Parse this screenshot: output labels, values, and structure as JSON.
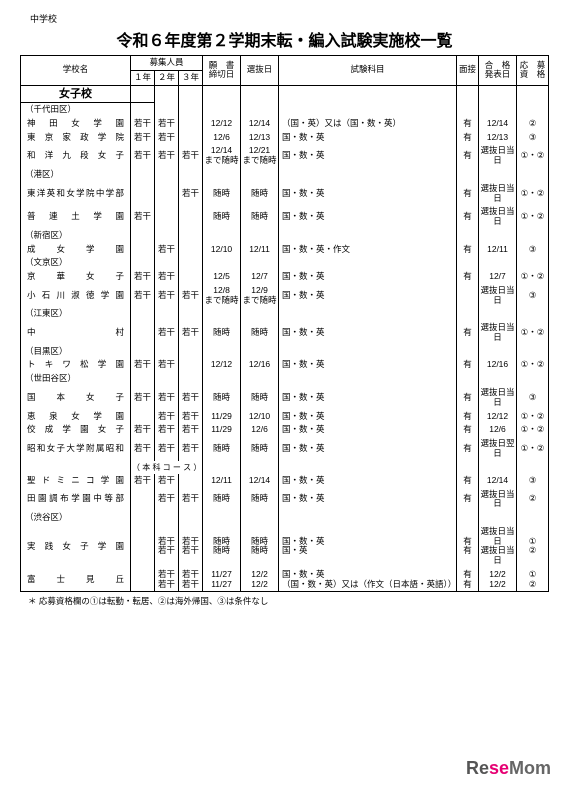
{
  "pretitle": "中学校",
  "title": "令和６年度第２学期末転・編入試験実施校一覧",
  "headers": {
    "school": "学校名",
    "recruit": "募集人員",
    "y1": "１年",
    "y2": "２年",
    "y3": "３年",
    "deadline": "願　書\n締切日",
    "select": "選抜日",
    "subjects": "試験科目",
    "interview": "面接",
    "result": "合　格\n発表日",
    "elig": "応　募\n資　格"
  },
  "section": "女子校",
  "rows": [
    {
      "type": "district",
      "text": "（千代田区）"
    },
    {
      "type": "school",
      "name": "神　田　女　学　園",
      "y1": "若干",
      "y2": "若干",
      "y3": "",
      "dl": "12/12",
      "sel": "12/14",
      "subj": "（国・英）又は（国・数・英）",
      "itv": "有",
      "res": "12/14",
      "elig": "②"
    },
    {
      "type": "school",
      "name": "東　京　家　政　学　院",
      "y1": "若干",
      "y2": "若干",
      "y3": "",
      "dl": "12/6",
      "sel": "12/13",
      "subj": "国・数・英",
      "itv": "有",
      "res": "12/13",
      "elig": "③"
    },
    {
      "type": "school",
      "name": "和　洋　九　段　女　子",
      "y1": "若干",
      "y2": "若干",
      "y3": "若干",
      "dl": "12/14\nまで随時",
      "sel": "12/21\nまで随時",
      "subj": "国・数・英",
      "itv": "有",
      "res": "選抜日当日",
      "elig": "①・②"
    },
    {
      "type": "district",
      "text": "（港区）"
    },
    {
      "type": "school",
      "name": "東洋英和女学院中学部",
      "y1": "",
      "y2": "",
      "y3": "若干",
      "dl": "随時",
      "sel": "随時",
      "subj": "国・数・英",
      "itv": "有",
      "res": "選抜日当日",
      "elig": "①・②"
    },
    {
      "type": "school",
      "name": "普　連　土　学　園",
      "y1": "若干",
      "y2": "",
      "y3": "",
      "dl": "随時",
      "sel": "随時",
      "subj": "国・数・英",
      "itv": "有",
      "res": "選抜日当日",
      "elig": "①・②"
    },
    {
      "type": "district",
      "text": "（新宿区）"
    },
    {
      "type": "school",
      "name": "成　　女　　学　　園",
      "y1": "",
      "y2": "若干",
      "y3": "",
      "dl": "12/10",
      "sel": "12/11",
      "subj": "国・数・英・作文",
      "itv": "有",
      "res": "12/11",
      "elig": "③"
    },
    {
      "type": "district",
      "text": "（文京区）"
    },
    {
      "type": "school",
      "name": "京　　華　　女　　子",
      "y1": "若干",
      "y2": "若干",
      "y3": "",
      "dl": "12/5",
      "sel": "12/7",
      "subj": "国・数・英",
      "itv": "有",
      "res": "12/7",
      "elig": "①・②"
    },
    {
      "type": "school",
      "name": "小 石 川 淑 徳 学 園",
      "y1": "若干",
      "y2": "若干",
      "y3": "若干",
      "dl": "12/8\nまで随時",
      "sel": "12/9\nまで随時",
      "subj": "国・数・英",
      "itv": "",
      "res": "選抜日当日",
      "elig": "③"
    },
    {
      "type": "district",
      "text": "（江東区）"
    },
    {
      "type": "school",
      "name": "中　　　　　　　　村",
      "y1": "",
      "y2": "若干",
      "y3": "若干",
      "dl": "随時",
      "sel": "随時",
      "subj": "国・数・英",
      "itv": "有",
      "res": "選抜日当日",
      "elig": "①・②"
    },
    {
      "type": "district",
      "text": "（目黒区）"
    },
    {
      "type": "school",
      "name": "ト キ ワ 松 学 園",
      "y1": "若干",
      "y2": "若干",
      "y3": "",
      "dl": "12/12",
      "sel": "12/16",
      "subj": "国・数・英",
      "itv": "有",
      "res": "12/16",
      "elig": "①・②"
    },
    {
      "type": "district",
      "text": "（世田谷区）"
    },
    {
      "type": "school",
      "name": "国　　本　　女　　子",
      "y1": "若干",
      "y2": "若干",
      "y3": "若干",
      "dl": "随時",
      "sel": "随時",
      "subj": "国・数・英",
      "itv": "有",
      "res": "選抜日当日",
      "elig": "③"
    },
    {
      "type": "school",
      "name": "恵　泉　女　学　園",
      "y1": "",
      "y2": "若干",
      "y3": "若干",
      "dl": "11/29",
      "sel": "12/10",
      "subj": "国・数・英",
      "itv": "有",
      "res": "12/12",
      "elig": "①・②"
    },
    {
      "type": "school",
      "name": "佼 成 学 園 女 子",
      "y1": "若干",
      "y2": "若干",
      "y3": "若干",
      "dl": "11/29",
      "sel": "12/6",
      "subj": "国・数・英",
      "itv": "有",
      "res": "12/6",
      "elig": "①・②"
    },
    {
      "type": "school",
      "name": "昭和女子大学附属昭和",
      "y1": "若干",
      "y2": "若干",
      "y3": "若干",
      "dl": "随時",
      "sel": "随時",
      "subj": "国・数・英",
      "itv": "有",
      "res": "選抜日翌日",
      "elig": "①・②"
    },
    {
      "type": "note",
      "text": "（ 本 科 コ ー ス ）"
    },
    {
      "type": "school",
      "name": "聖 ド ミ ニ コ 学 園",
      "y1": "若干",
      "y2": "若干",
      "y3": "",
      "dl": "12/11",
      "sel": "12/14",
      "subj": "国・数・英",
      "itv": "有",
      "res": "12/14",
      "elig": "③"
    },
    {
      "type": "school",
      "name": "田園調布学園中等部",
      "y1": "",
      "y2": "若干",
      "y3": "若干",
      "dl": "随時",
      "sel": "随時",
      "subj": "国・数・英",
      "itv": "有",
      "res": "選抜日当日",
      "elig": "②"
    },
    {
      "type": "district",
      "text": "（渋谷区）"
    },
    {
      "type": "school",
      "name": "実 践 女 子 学 園",
      "y1": "",
      "y2": "若干\n若干",
      "y3": "若干\n若干",
      "dl": "随時\n随時",
      "sel": "随時\n随時",
      "subj": "国・数・英\n国・英",
      "itv": "有\n有",
      "res": "選抜日当日\n選抜日当日",
      "elig": "①\n②"
    },
    {
      "type": "school",
      "name": "富　　士　　見　　丘",
      "y1": "",
      "y2": "若干\n若干",
      "y3": "若干\n若干",
      "dl": "11/27\n11/27",
      "sel": "12/2\n12/2",
      "subj": "国・数・英\n（国・数・英）又は（作文（日本語・英語））",
      "itv": "有\n有",
      "res": "12/2\n12/2",
      "elig": "①\n②",
      "last": true
    }
  ],
  "footnote": "＊ 応募資格欄の①は転勤・転居、②は海外帰国、③は条件なし",
  "logo": {
    "re": "Re",
    "se": "se",
    "mom": "Mom"
  }
}
